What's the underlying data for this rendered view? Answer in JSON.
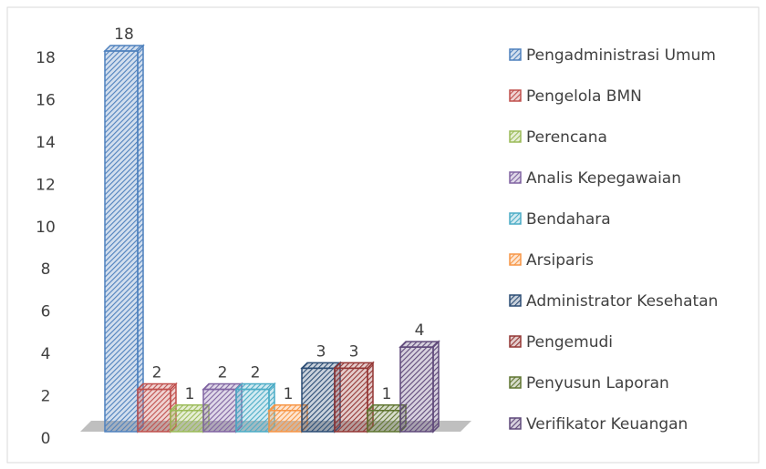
{
  "chart_data": {
    "type": "bar",
    "ylim": [
      0,
      18
    ],
    "yticks": [
      0,
      2,
      4,
      6,
      8,
      10,
      12,
      14,
      16,
      18
    ],
    "legend": "right",
    "series": [
      {
        "name": "Pengadministrasi Umum",
        "color": "#4f81bd",
        "values": [
          18
        ]
      },
      {
        "name": "Pengelola BMN",
        "color": "#c0504d",
        "values": [
          2
        ]
      },
      {
        "name": "Perencana",
        "color": "#9bbb59",
        "values": [
          1
        ]
      },
      {
        "name": "Analis Kepegawaian",
        "color": "#8064a2",
        "values": [
          2
        ]
      },
      {
        "name": "Bendahara",
        "color": "#4bacc6",
        "values": [
          2
        ]
      },
      {
        "name": "Arsiparis",
        "color": "#f79646",
        "values": [
          1
        ]
      },
      {
        "name": "Administrator Kesehatan",
        "color": "#2c4d75",
        "values": [
          3
        ]
      },
      {
        "name": "Pengemudi",
        "color": "#943634",
        "values": [
          3
        ]
      },
      {
        "name": "Penyusun Laporan",
        "color": "#5f7530",
        "values": [
          1
        ]
      },
      {
        "name": "Verifikator Keuangan",
        "color": "#5f497a",
        "values": [
          4
        ]
      }
    ]
  }
}
